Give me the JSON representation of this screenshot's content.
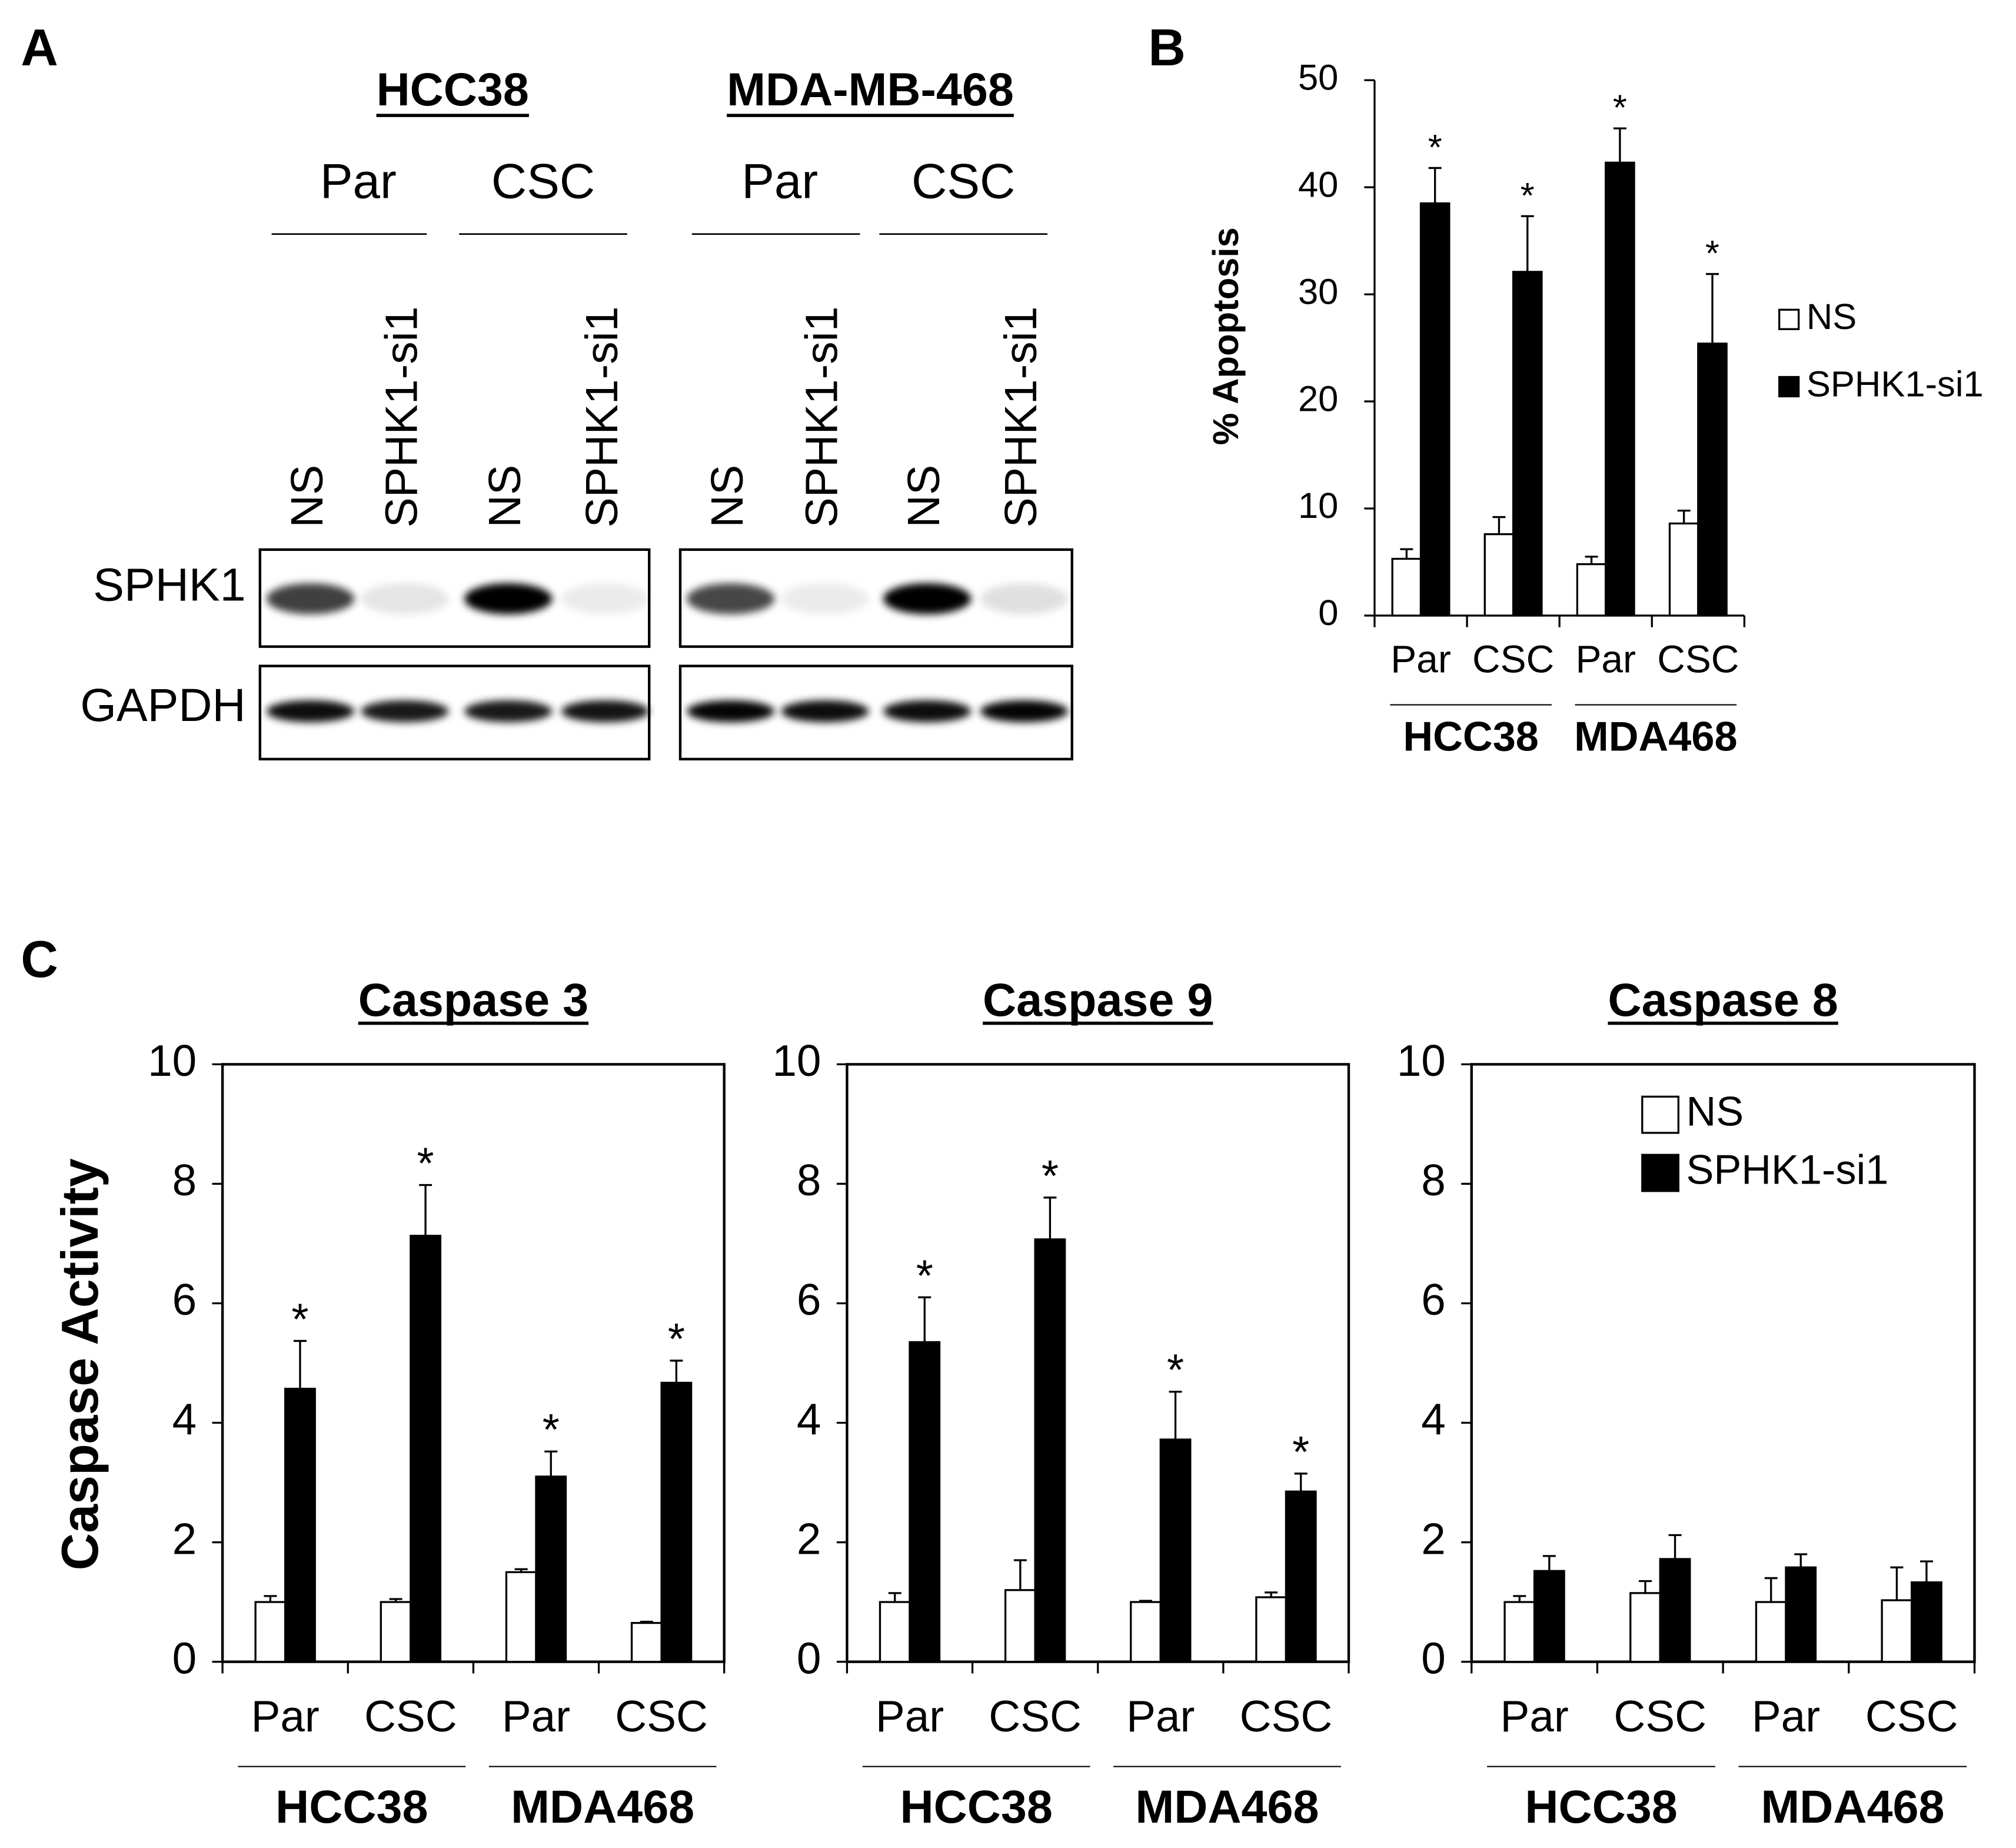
{
  "panel_labels": [
    "A",
    "B",
    "C"
  ],
  "blot": {
    "cell_lines": [
      {
        "name": "HCC38",
        "conditions": [
          "Par",
          "CSC"
        ]
      },
      {
        "name": "MDA-MB-468",
        "conditions": [
          "Par",
          "CSC"
        ]
      }
    ],
    "treatments": [
      "NS",
      "SPHK1-si1"
    ],
    "proteins": [
      "SPHK1",
      "GAPDH"
    ]
  },
  "chart_data": [
    {
      "type": "bar",
      "ylabel": "% Apoptosis",
      "categories": [
        "Par",
        "CSC",
        "Par",
        "CSC"
      ],
      "groups": [
        "HCC38",
        "MDA468"
      ],
      "ylim": [
        0,
        50
      ],
      "yticks": [
        0,
        10,
        20,
        30,
        40,
        50
      ],
      "legend": "right",
      "series": [
        {
          "name": "NS",
          "color": "#ffffff",
          "values": [
            5.3,
            7.6,
            4.8,
            8.6
          ],
          "errors": [
            0.9,
            1.6,
            0.7,
            1.2
          ]
        },
        {
          "name": "SPHK1-si1",
          "color": "#000000",
          "values": [
            38.5,
            32.1,
            42.3,
            25.4
          ],
          "errors": [
            3.3,
            5.2,
            3.2,
            6.5
          ],
          "labels": [
            "*",
            "*",
            "*",
            "*"
          ]
        }
      ]
    },
    {
      "type": "bar",
      "title": "Caspase 3",
      "ylabel": "Caspase Activity",
      "categories": [
        "Par",
        "CSC",
        "Par",
        "CSC"
      ],
      "groups": [
        "HCC38",
        "MDA468"
      ],
      "ylim": [
        0,
        10
      ],
      "yticks": [
        0,
        2,
        4,
        6,
        8,
        10
      ],
      "series": [
        {
          "color": "#ffffff",
          "values": [
            1.0,
            1.0,
            1.5,
            0.65
          ],
          "errors": [
            0.1,
            0.05,
            0.05,
            0.02
          ]
        },
        {
          "color": "#000000",
          "values": [
            4.57,
            7.13,
            3.1,
            4.67
          ],
          "errors": [
            0.8,
            0.85,
            0.42,
            0.37
          ],
          "labels": [
            "*",
            "*",
            "*",
            "*"
          ]
        }
      ]
    },
    {
      "type": "bar",
      "title": "Caspase 9",
      "categories": [
        "Par",
        "CSC",
        "Par",
        "CSC"
      ],
      "groups": [
        "HCC38",
        "MDA468"
      ],
      "ylim": [
        0,
        10
      ],
      "yticks": [
        0,
        2,
        4,
        6,
        8,
        10
      ],
      "series": [
        {
          "color": "#ffffff",
          "values": [
            1.0,
            1.2,
            1.0,
            1.08
          ],
          "errors": [
            0.15,
            0.5,
            0.02,
            0.08
          ]
        },
        {
          "color": "#000000",
          "values": [
            5.35,
            7.07,
            3.72,
            2.85
          ],
          "errors": [
            0.75,
            0.7,
            0.8,
            0.3
          ],
          "labels": [
            "*",
            "*",
            "*",
            "*"
          ]
        }
      ]
    },
    {
      "type": "bar",
      "title": "Caspase 8",
      "categories": [
        "Par",
        "CSC",
        "Par",
        "CSC"
      ],
      "groups": [
        "HCC38",
        "MDA468"
      ],
      "ylim": [
        0,
        10
      ],
      "yticks": [
        0,
        2,
        4,
        6,
        8,
        10
      ],
      "legend": "upper right",
      "series": [
        {
          "name": "NS",
          "color": "#ffffff",
          "values": [
            1.0,
            1.15,
            1.0,
            1.03
          ],
          "errors": [
            0.1,
            0.2,
            0.4,
            0.55
          ]
        },
        {
          "name": "SPHK1-si1",
          "color": "#000000",
          "values": [
            1.52,
            1.72,
            1.58,
            1.33
          ],
          "errors": [
            0.25,
            0.4,
            0.22,
            0.35
          ]
        }
      ]
    }
  ]
}
